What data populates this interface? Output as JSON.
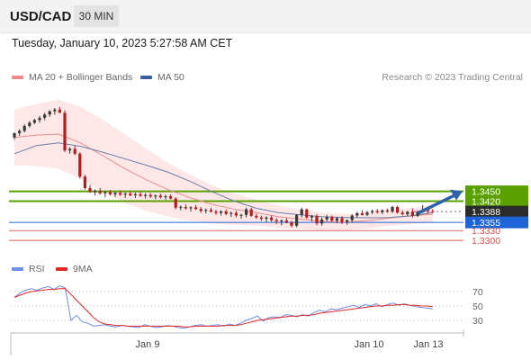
{
  "header": {
    "pair": "USD/CAD",
    "interval": "30 MIN"
  },
  "datetime": "Tuesday, January 10, 2023 5:27:58 AM CET",
  "legend": {
    "ma20": "MA 20 + Bollinger Bands",
    "ma50": "MA 50",
    "copyright": "Research © 2023 Trading Central"
  },
  "rsi_legend": {
    "rsi": "RSI",
    "ma9": "9MA"
  },
  "colors": {
    "up": "#3a3a3a",
    "down": "#b71c1c",
    "ma20": "#e88e8e",
    "band": "#fde3e3",
    "ma50": "#6a7fa6",
    "green": "#5aa100",
    "blue": "#1e63d8",
    "red": "#e24a4a",
    "rsi": "#6f8fe2",
    "rsi_ma": "#e02828"
  },
  "chart_data": [
    {
      "type": "candlestick",
      "title": "USD/CAD",
      "ylim": [
        1.327,
        1.376
      ],
      "last_price": 1.3388,
      "levels": [
        {
          "value": 1.345,
          "label": "1.3450",
          "kind": "resistance"
        },
        {
          "value": 1.342,
          "label": "1.3420",
          "kind": "resistance"
        },
        {
          "value": 1.3388,
          "label": "1.3388",
          "kind": "last"
        },
        {
          "value": 1.3355,
          "label": "1.3355",
          "kind": "pivot"
        },
        {
          "value": 1.333,
          "label": "1.3330",
          "kind": "support"
        },
        {
          "value": 1.33,
          "label": "1.3300",
          "kind": "support"
        }
      ],
      "x_ticks": [
        "Jan 9",
        "Jan 10",
        "Jan 13"
      ],
      "series": [
        {
          "name": "MA 20 + Bollinger Bands",
          "values": [
            1.3615,
            1.3622,
            1.3625,
            1.3598,
            1.356,
            1.352,
            1.3485,
            1.3455,
            1.343,
            1.341,
            1.3395,
            1.3385,
            1.3372,
            1.3365,
            1.3358,
            1.3356,
            1.336,
            1.3368,
            1.3375,
            1.338
          ]
        },
        {
          "name": "MA 50",
          "values": [
            1.3565,
            1.359,
            1.3598,
            1.3588,
            1.357,
            1.355,
            1.353,
            1.3508,
            1.348,
            1.3448,
            1.342,
            1.3398,
            1.3385,
            1.3378,
            1.3372,
            1.337,
            1.3369,
            1.337,
            1.3375,
            1.3385
          ]
        }
      ],
      "candles": [
        [
          1.3615,
          1.363,
          1.3608,
          1.3628
        ],
        [
          1.3628,
          1.364,
          1.362,
          1.3635
        ],
        [
          1.3635,
          1.3655,
          1.363,
          1.365
        ],
        [
          1.365,
          1.3665,
          1.3645,
          1.366
        ],
        [
          1.366,
          1.3672,
          1.3655,
          1.3668
        ],
        [
          1.3668,
          1.368,
          1.366,
          1.3675
        ],
        [
          1.3675,
          1.369,
          1.3668,
          1.3685
        ],
        [
          1.3685,
          1.3698,
          1.3678,
          1.3695
        ],
        [
          1.3695,
          1.3705,
          1.3685,
          1.37
        ],
        [
          1.37,
          1.3708,
          1.3692,
          1.369
        ],
        [
          1.369,
          1.3698,
          1.357,
          1.3575
        ],
        [
          1.3575,
          1.3585,
          1.3565,
          1.358
        ],
        [
          1.358,
          1.359,
          1.356,
          1.3565
        ],
        [
          1.3565,
          1.357,
          1.349,
          1.3495
        ],
        [
          1.3495,
          1.35,
          1.3455,
          1.346
        ],
        [
          1.346,
          1.347,
          1.3445,
          1.3448
        ],
        [
          1.3448,
          1.3456,
          1.3438,
          1.3452
        ],
        [
          1.3452,
          1.346,
          1.344,
          1.3444
        ],
        [
          1.3444,
          1.3452,
          1.3432,
          1.3447
        ],
        [
          1.3447,
          1.3454,
          1.3437,
          1.3441
        ],
        [
          1.3441,
          1.3449,
          1.3433,
          1.3445
        ],
        [
          1.3445,
          1.3452,
          1.3436,
          1.344
        ],
        [
          1.344,
          1.3447,
          1.343,
          1.3443
        ],
        [
          1.3443,
          1.345,
          1.3435,
          1.3438
        ],
        [
          1.3438,
          1.3446,
          1.343,
          1.3441
        ],
        [
          1.3441,
          1.3448,
          1.3433,
          1.3436
        ],
        [
          1.3436,
          1.3444,
          1.3428,
          1.3439
        ],
        [
          1.3439,
          1.3445,
          1.343,
          1.3434
        ],
        [
          1.3434,
          1.3441,
          1.3426,
          1.3437
        ],
        [
          1.3437,
          1.3443,
          1.3428,
          1.3432
        ],
        [
          1.3432,
          1.344,
          1.3424,
          1.3435
        ],
        [
          1.3435,
          1.3441,
          1.3425,
          1.3428
        ],
        [
          1.3428,
          1.3432,
          1.3395,
          1.34
        ],
        [
          1.34,
          1.3407,
          1.3392,
          1.3402
        ],
        [
          1.3402,
          1.341,
          1.3394,
          1.3398
        ],
        [
          1.3398,
          1.3405,
          1.3388,
          1.3401
        ],
        [
          1.3401,
          1.3408,
          1.3393,
          1.3396
        ],
        [
          1.3396,
          1.3402,
          1.3384,
          1.339
        ],
        [
          1.339,
          1.3398,
          1.3382,
          1.3393
        ],
        [
          1.3393,
          1.34,
          1.3385,
          1.3388
        ],
        [
          1.3388,
          1.3394,
          1.3378,
          1.3384
        ],
        [
          1.3384,
          1.3392,
          1.3376,
          1.3389
        ],
        [
          1.3389,
          1.3395,
          1.3377,
          1.3381
        ],
        [
          1.3381,
          1.3388,
          1.3372,
          1.3384
        ],
        [
          1.3384,
          1.339,
          1.337,
          1.3376
        ],
        [
          1.3376,
          1.3382,
          1.3366,
          1.3378
        ],
        [
          1.3378,
          1.34,
          1.337,
          1.3395
        ],
        [
          1.3395,
          1.34,
          1.3372,
          1.3375
        ],
        [
          1.3375,
          1.3382,
          1.3366,
          1.337
        ],
        [
          1.337,
          1.3376,
          1.336,
          1.3366
        ],
        [
          1.3366,
          1.3374,
          1.3356,
          1.337
        ],
        [
          1.337,
          1.3376,
          1.3357,
          1.3362
        ],
        [
          1.3362,
          1.3368,
          1.335,
          1.3358
        ],
        [
          1.3358,
          1.3364,
          1.3346,
          1.3361
        ],
        [
          1.3361,
          1.3368,
          1.3352,
          1.3355
        ],
        [
          1.3355,
          1.336,
          1.334,
          1.3345
        ],
        [
          1.3345,
          1.338,
          1.334,
          1.3378
        ],
        [
          1.3378,
          1.34,
          1.337,
          1.3395
        ],
        [
          1.3395,
          1.3398,
          1.3365,
          1.337
        ],
        [
          1.337,
          1.3378,
          1.3358,
          1.3374
        ],
        [
          1.3374,
          1.338,
          1.3346,
          1.3352
        ],
        [
          1.3352,
          1.337,
          1.3345,
          1.3364
        ],
        [
          1.3364,
          1.3378,
          1.3358,
          1.3372
        ],
        [
          1.3372,
          1.3376,
          1.3356,
          1.336
        ],
        [
          1.336,
          1.3372,
          1.3352,
          1.3368
        ],
        [
          1.3368,
          1.3374,
          1.335,
          1.3356
        ],
        [
          1.3356,
          1.3364,
          1.3348,
          1.3362
        ],
        [
          1.3362,
          1.338,
          1.3355,
          1.3376
        ],
        [
          1.3376,
          1.3388,
          1.337,
          1.3383
        ],
        [
          1.3383,
          1.3392,
          1.3376,
          1.3378
        ],
        [
          1.3378,
          1.339,
          1.3374,
          1.3386
        ],
        [
          1.3386,
          1.3394,
          1.338,
          1.339
        ],
        [
          1.339,
          1.3396,
          1.3382,
          1.3386
        ],
        [
          1.3386,
          1.3395,
          1.338,
          1.3392
        ],
        [
          1.3392,
          1.3398,
          1.3384,
          1.3388
        ],
        [
          1.3388,
          1.3406,
          1.3384,
          1.3402
        ],
        [
          1.3402,
          1.3406,
          1.3382,
          1.3385
        ],
        [
          1.3385,
          1.3392,
          1.3376,
          1.338
        ],
        [
          1.338,
          1.339,
          1.3374,
          1.3388
        ],
        [
          1.3388,
          1.3398,
          1.337,
          1.3375
        ],
        [
          1.3375,
          1.3392,
          1.3372,
          1.3388
        ],
        [
          1.3388,
          1.3408,
          1.3384,
          1.3394
        ],
        [
          1.3394,
          1.3398,
          1.3382,
          1.339
        ],
        [
          1.339,
          1.3396,
          1.3384,
          1.3388
        ]
      ]
    },
    {
      "type": "line",
      "title": "RSI",
      "ylim": [
        15,
        85
      ],
      "y_ticks": [
        70,
        50,
        30
      ],
      "x_ticks": [
        "Jan 9",
        "Jan 10",
        "Jan 13"
      ],
      "series": [
        {
          "name": "RSI",
          "values": [
            62,
            68,
            72,
            74,
            72,
            75,
            77,
            73,
            78,
            75,
            30,
            37,
            28,
            26,
            22,
            23,
            24,
            22,
            21,
            23,
            22,
            21,
            20,
            24,
            22,
            20,
            21,
            23,
            22,
            20,
            19,
            21,
            23,
            24,
            22,
            23,
            24,
            22,
            25,
            23,
            26,
            30,
            33,
            36,
            29,
            34,
            35,
            34,
            38,
            37,
            35,
            38,
            36,
            41,
            44,
            42,
            46,
            45,
            47,
            49,
            51,
            48,
            52,
            50,
            53,
            49,
            52,
            54,
            51,
            53,
            51,
            49,
            48,
            47,
            46
          ]
        },
        {
          "name": "9MA",
          "values": [
            62,
            65,
            68,
            70,
            71,
            72,
            73,
            73,
            74,
            74,
            66,
            58,
            50,
            42,
            34,
            28,
            25,
            24,
            23,
            23,
            22,
            22,
            22,
            22,
            22,
            22,
            22,
            22,
            22,
            22,
            21,
            21,
            22,
            22,
            22,
            22,
            22,
            23,
            23,
            23,
            24,
            26,
            28,
            30,
            31,
            32,
            33,
            34,
            35,
            36,
            36,
            37,
            37,
            38,
            40,
            41,
            42,
            43,
            44,
            45,
            46,
            47,
            48,
            49,
            50,
            50,
            51,
            51,
            52,
            52,
            51,
            51,
            50,
            50,
            49
          ]
        }
      ]
    }
  ]
}
